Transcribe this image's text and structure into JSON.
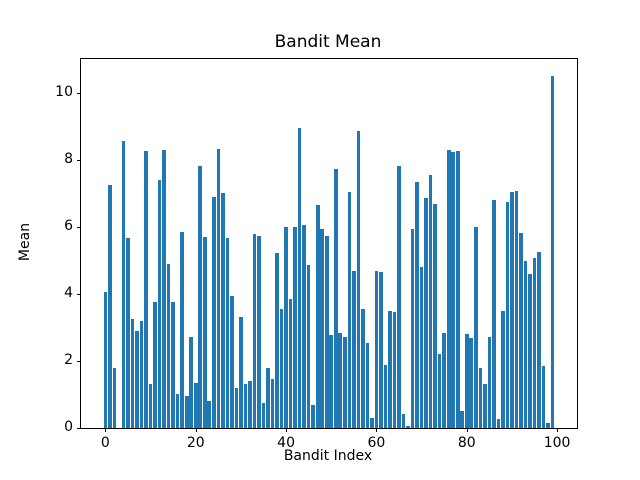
{
  "chart_data": {
    "type": "bar",
    "title": "Bandit Mean",
    "xlabel": "Bandit Index",
    "ylabel": "Mean",
    "bar_color": "#1f77b4",
    "background_color": "#ffffff",
    "grid": false,
    "legend": null,
    "xlim": [
      -5.4,
      104.4
    ],
    "ylim": [
      0,
      11.0
    ],
    "xticks": [
      0,
      20,
      40,
      60,
      80,
      100
    ],
    "yticks": [
      0,
      2,
      4,
      6,
      8,
      10
    ],
    "x": [
      0,
      1,
      2,
      3,
      4,
      5,
      6,
      7,
      8,
      9,
      10,
      11,
      12,
      13,
      14,
      15,
      16,
      17,
      18,
      19,
      20,
      21,
      22,
      23,
      24,
      25,
      26,
      27,
      28,
      29,
      30,
      31,
      32,
      33,
      34,
      35,
      36,
      37,
      38,
      39,
      40,
      41,
      42,
      43,
      44,
      45,
      46,
      47,
      48,
      49,
      50,
      51,
      52,
      53,
      54,
      55,
      56,
      57,
      58,
      59,
      60,
      61,
      62,
      63,
      64,
      65,
      66,
      67,
      68,
      69,
      70,
      71,
      72,
      73,
      74,
      75,
      76,
      77,
      78,
      79,
      80,
      81,
      82,
      83,
      84,
      85,
      86,
      87,
      88,
      89,
      90,
      91,
      92,
      93,
      94,
      95,
      96,
      97,
      98,
      99
    ],
    "values": [
      4.05,
      7.25,
      1.8,
      0,
      8.55,
      5.67,
      3.25,
      2.9,
      3.2,
      8.25,
      1.3,
      3.77,
      7.38,
      8.3,
      4.9,
      3.75,
      1.0,
      5.85,
      0.95,
      2.7,
      1.35,
      7.8,
      5.7,
      0.8,
      6.9,
      8.33,
      7.02,
      5.65,
      3.95,
      1.2,
      3.3,
      1.3,
      1.4,
      5.78,
      5.72,
      0.74,
      1.8,
      1.47,
      5.22,
      3.54,
      6.0,
      3.86,
      6.0,
      8.95,
      6.05,
      4.85,
      0.7,
      6.66,
      5.93,
      5.72,
      2.77,
      7.73,
      2.84,
      2.7,
      7.03,
      4.68,
      8.85,
      3.56,
      2.53,
      0.31,
      4.68,
      4.66,
      1.87,
      3.48,
      3.46,
      7.8,
      0.41,
      0.05,
      5.94,
      7.33,
      4.8,
      6.86,
      7.54,
      6.68,
      2.2,
      2.84,
      8.28,
      8.22,
      8.27,
      0.5,
      2.81,
      2.69,
      6.0,
      1.8,
      1.3,
      2.7,
      6.79,
      0.26,
      3.49,
      6.73,
      7.03,
      7.08,
      5.8,
      4.97,
      4.6,
      5.08,
      5.26,
      1.85,
      0.15,
      10.48
    ]
  }
}
